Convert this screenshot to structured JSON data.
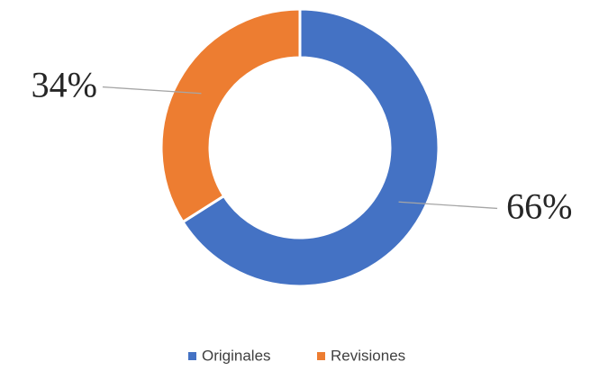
{
  "chart_data": {
    "type": "donut",
    "categories": [
      "Originales",
      "Revisiones"
    ],
    "values": [
      66,
      34
    ],
    "value_labels": [
      "66%",
      "34%"
    ],
    "colors": [
      "#4472c4",
      "#ed7d31"
    ],
    "legend": "bottom"
  }
}
